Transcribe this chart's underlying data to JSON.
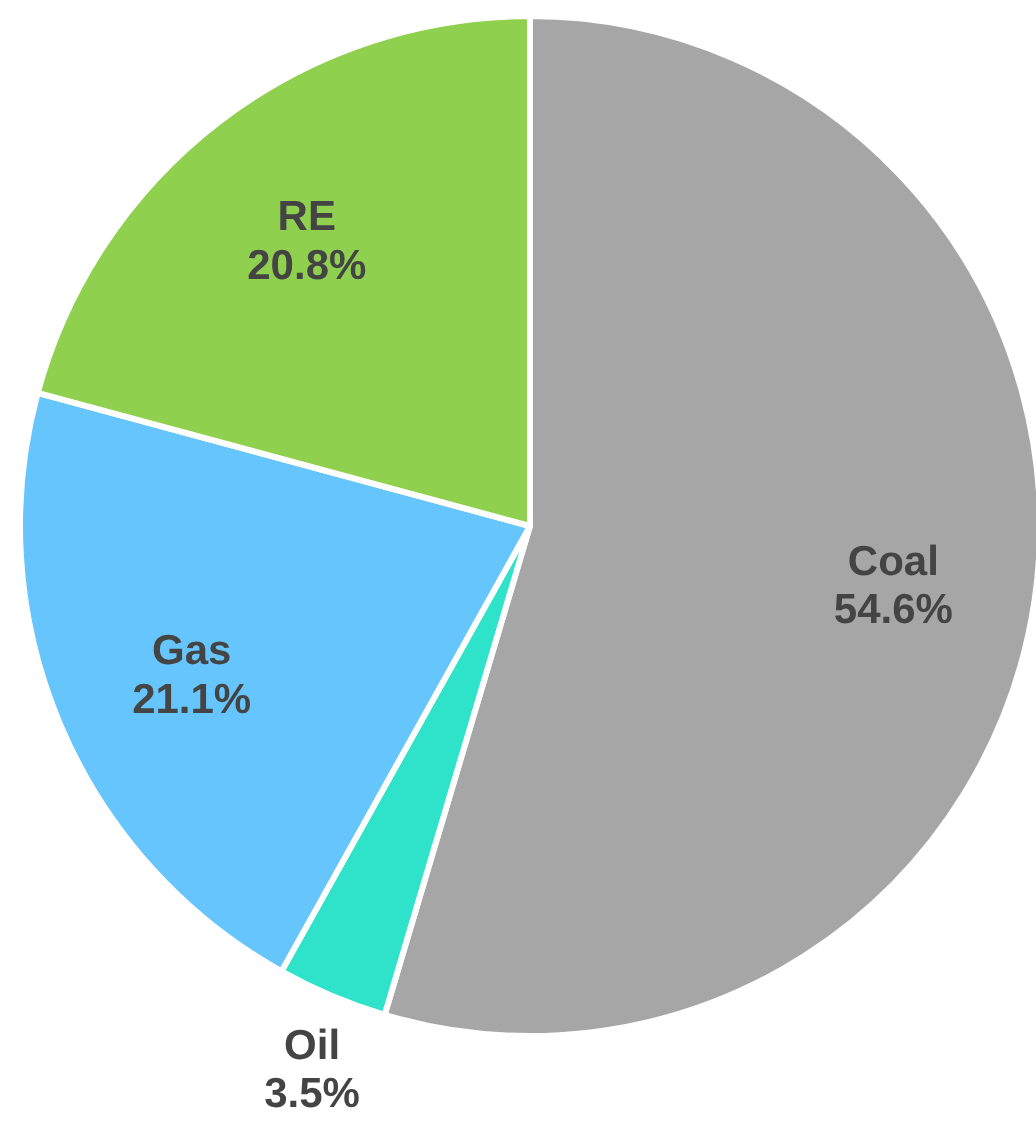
{
  "chart_data": {
    "type": "pie",
    "categories": [
      "Coal",
      "Oil",
      "Gas",
      "RE"
    ],
    "values": [
      54.6,
      3.5,
      21.1,
      20.8
    ],
    "colors": [
      "#a6a6a6",
      "#2ee3c9",
      "#66c5fc",
      "#8fd14f"
    ],
    "value_labels": [
      "54.6%",
      "3.5%",
      "21.1%",
      "20.8%"
    ]
  }
}
